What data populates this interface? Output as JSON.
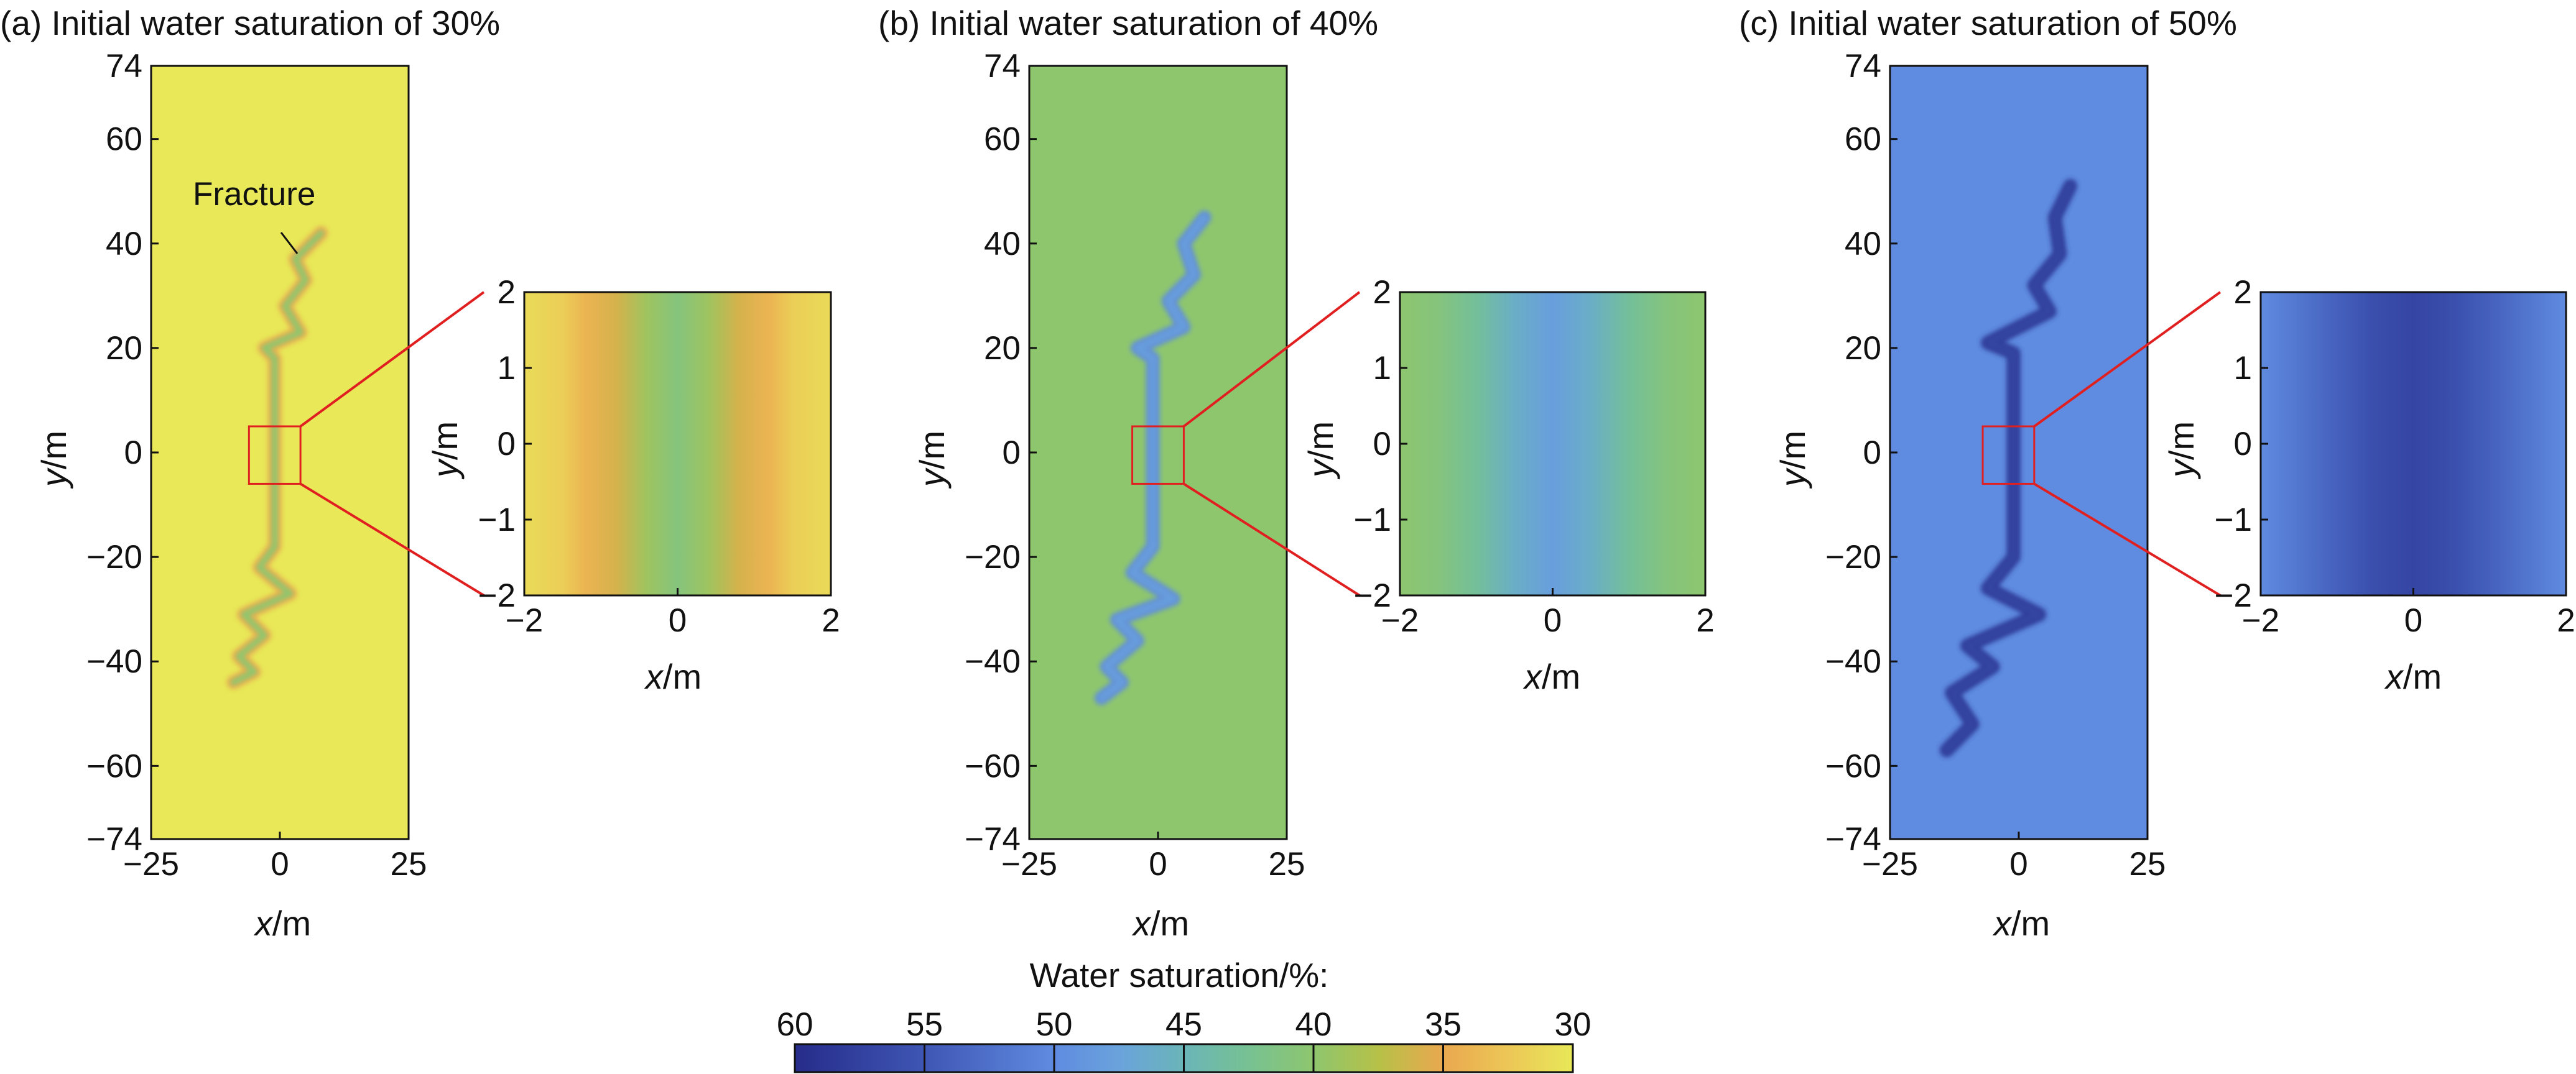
{
  "chart_data": [
    {
      "type": "heatmap",
      "title": "(a) Initial water saturation of 30%",
      "initial_saturation": 30,
      "xlabel": "x/m",
      "ylabel": "y/m",
      "xlim": [
        -25,
        25
      ],
      "ylim": [
        -74,
        74
      ],
      "xticks": [
        -25,
        0,
        25
      ],
      "yticks": [
        74,
        60,
        40,
        20,
        0,
        -20,
        -40,
        -60,
        -74
      ],
      "xtick_labels": [
        "−25",
        "0",
        "25"
      ],
      "ytick_labels": [
        "74",
        "60",
        "40",
        "20",
        "0",
        "−20",
        "−40",
        "−60",
        "−74"
      ],
      "fracture_label": "Fracture",
      "fracture_saturation": 40,
      "fracture_path": [
        [
          8,
          42
        ],
        [
          3,
          37
        ],
        [
          5,
          33
        ],
        [
          1,
          28
        ],
        [
          4,
          23
        ],
        [
          -3,
          20
        ],
        [
          -1,
          18
        ],
        [
          -1,
          -18
        ],
        [
          -4,
          -22
        ],
        [
          2,
          -27
        ],
        [
          -7,
          -31
        ],
        [
          -3,
          -35
        ],
        [
          -8,
          -39
        ],
        [
          -5,
          -42
        ],
        [
          -9,
          -44
        ]
      ],
      "zoom_box": {
        "xlim": [
          -6,
          4
        ],
        "ylim": [
          -6,
          5
        ]
      },
      "inset": {
        "xlim": [
          -2,
          2
        ],
        "ylim": [
          -2,
          2
        ],
        "xticks": [
          -2,
          0,
          2
        ],
        "yticks": [
          2,
          1,
          0,
          -1,
          -2
        ],
        "xtick_labels": [
          "−2",
          "0",
          "2"
        ],
        "ytick_labels": [
          "2",
          "1",
          "0",
          "−1",
          "−2"
        ],
        "xlabel": "x/m",
        "ylabel": "y/m",
        "profile_x": [
          -2,
          -1.5,
          -1.2,
          -0.8,
          -0.4,
          0,
          0.4,
          0.8,
          1.2,
          1.5,
          2
        ],
        "profile_saturation": [
          31,
          32,
          34,
          36,
          39,
          41,
          39,
          36,
          34,
          32,
          31
        ]
      }
    },
    {
      "type": "heatmap",
      "title": "(b) Initial water saturation of 40%",
      "initial_saturation": 40,
      "xlabel": "x/m",
      "ylabel": "y/m",
      "xlim": [
        -25,
        25
      ],
      "ylim": [
        -74,
        74
      ],
      "xticks": [
        -25,
        0,
        25
      ],
      "yticks": [
        74,
        60,
        40,
        20,
        0,
        -20,
        -40,
        -60,
        -74
      ],
      "xtick_labels": [
        "−25",
        "0",
        "25"
      ],
      "ytick_labels": [
        "74",
        "60",
        "40",
        "20",
        "0",
        "−20",
        "−40",
        "−60",
        "−74"
      ],
      "fracture_saturation": 48,
      "fracture_path": [
        [
          9,
          45
        ],
        [
          5,
          40
        ],
        [
          7,
          34
        ],
        [
          2,
          29
        ],
        [
          5,
          24
        ],
        [
          -4,
          20
        ],
        [
          -1,
          18
        ],
        [
          -1,
          -18
        ],
        [
          -5,
          -23
        ],
        [
          3,
          -28
        ],
        [
          -8,
          -32
        ],
        [
          -4,
          -36
        ],
        [
          -10,
          -41
        ],
        [
          -7,
          -44
        ],
        [
          -11,
          -47
        ]
      ],
      "zoom_box": {
        "xlim": [
          -5,
          5
        ],
        "ylim": [
          -6,
          5
        ]
      },
      "inset": {
        "xlim": [
          -2,
          2
        ],
        "ylim": [
          -2,
          2
        ],
        "xticks": [
          -2,
          0,
          2
        ],
        "yticks": [
          2,
          1,
          0,
          -1,
          -2
        ],
        "xtick_labels": [
          "−2",
          "0",
          "2"
        ],
        "ytick_labels": [
          "2",
          "1",
          "0",
          "−1",
          "−2"
        ],
        "xlabel": "x/m",
        "ylabel": "y/m",
        "profile_x": [
          -2,
          -1.5,
          -1,
          -0.5,
          0,
          0.5,
          1,
          1.5,
          2
        ],
        "profile_saturation": [
          40,
          41,
          43,
          46,
          48,
          46,
          43,
          41,
          40
        ]
      }
    },
    {
      "type": "heatmap",
      "title": "(c) Initial water saturation of 50%",
      "initial_saturation": 50,
      "xlabel": "x/m",
      "ylabel": "y/m",
      "xlim": [
        -25,
        25
      ],
      "ylim": [
        -74,
        74
      ],
      "xticks": [
        -25,
        0,
        25
      ],
      "yticks": [
        74,
        60,
        40,
        20,
        0,
        -20,
        -40,
        -60,
        -74
      ],
      "xtick_labels": [
        "−25",
        "0",
        "25"
      ],
      "ytick_labels": [
        "74",
        "60",
        "40",
        "20",
        "0",
        "−20",
        "−40",
        "−60",
        "−74"
      ],
      "fracture_saturation": 57,
      "fracture_path": [
        [
          10,
          51
        ],
        [
          7,
          45
        ],
        [
          8,
          38
        ],
        [
          3,
          32
        ],
        [
          6,
          27
        ],
        [
          -6,
          21
        ],
        [
          -1,
          19
        ],
        [
          -1,
          -20
        ],
        [
          -6,
          -26
        ],
        [
          4,
          -31
        ],
        [
          -10,
          -37
        ],
        [
          -5,
          -41
        ],
        [
          -13,
          -46
        ],
        [
          -9,
          -52
        ],
        [
          -14,
          -57
        ]
      ],
      "zoom_box": {
        "xlim": [
          -7,
          3
        ],
        "ylim": [
          -6,
          5
        ]
      },
      "inset": {
        "xlim": [
          -2,
          2
        ],
        "ylim": [
          -2,
          2
        ],
        "xticks": [
          -2,
          0,
          2
        ],
        "yticks": [
          2,
          1,
          0,
          -1,
          -2
        ],
        "xtick_labels": [
          "−2",
          "0",
          "2"
        ],
        "ytick_labels": [
          "2",
          "1",
          "0",
          "−1",
          "−2"
        ],
        "xlabel": "x/m",
        "ylabel": "y/m",
        "profile_x": [
          -2,
          -1.5,
          -1,
          -0.5,
          0,
          0.5,
          1,
          1.5,
          2
        ],
        "profile_saturation": [
          50,
          52,
          54,
          56,
          57,
          56,
          54,
          52,
          50
        ]
      }
    }
  ],
  "colorbar": {
    "title": "Water saturation/%:",
    "ticks": [
      60,
      55,
      50,
      45,
      40,
      35,
      30
    ],
    "tick_labels": [
      "60",
      "55",
      "50",
      "45",
      "40",
      "35",
      "30"
    ],
    "colormap": [
      {
        "value": 60,
        "color": "#262c8a"
      },
      {
        "value": 55,
        "color": "#3f56b4"
      },
      {
        "value": 50,
        "color": "#5f8be0"
      },
      {
        "value": 47.5,
        "color": "#6aa3dc"
      },
      {
        "value": 45,
        "color": "#6ab5b8"
      },
      {
        "value": 42.5,
        "color": "#77c193"
      },
      {
        "value": 40,
        "color": "#8ec66e"
      },
      {
        "value": 37.5,
        "color": "#b6c148"
      },
      {
        "value": 35,
        "color": "#eaa84f"
      },
      {
        "value": 32.5,
        "color": "#ecc757"
      },
      {
        "value": 30,
        "color": "#e8e858"
      }
    ]
  },
  "colors": {
    "zoom_box": "#e02020",
    "axes": "#111111"
  }
}
